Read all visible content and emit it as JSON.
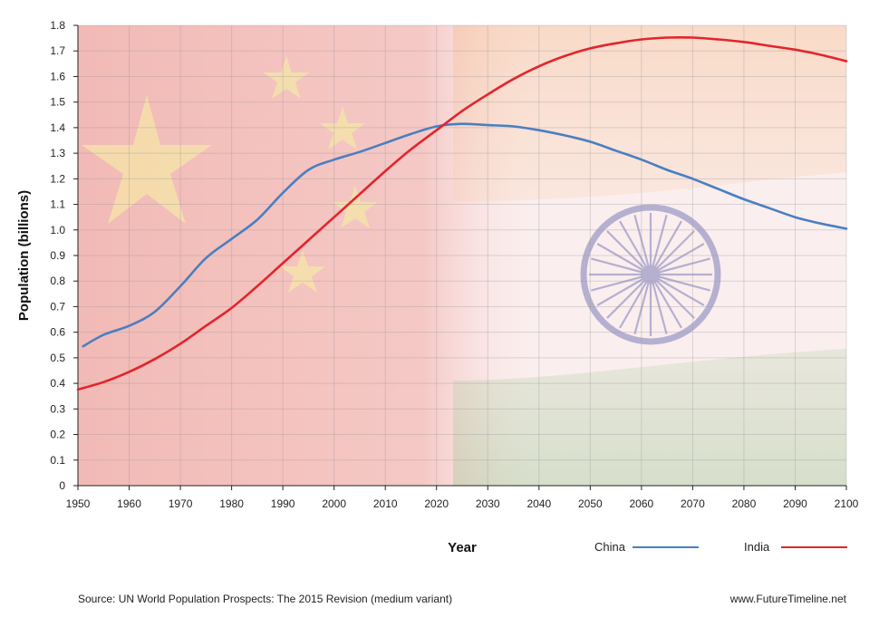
{
  "chart_data": {
    "type": "line",
    "title": "",
    "xlabel": "Year",
    "ylabel": "Population (billions)",
    "xlim": [
      1950,
      2100
    ],
    "ylim": [
      0,
      1.8
    ],
    "x_ticks": [
      1950,
      1960,
      1970,
      1980,
      1990,
      2000,
      2010,
      2020,
      2030,
      2040,
      2050,
      2060,
      2070,
      2080,
      2090,
      2100
    ],
    "y_ticks": [
      "0",
      "0.1",
      "0.2",
      "0.3",
      "0.4",
      "0.5",
      "0.6",
      "0.7",
      "0.8",
      "0.9",
      "1.0",
      "1.1",
      "1.2",
      "1.3",
      "1.4",
      "1.5",
      "1.6",
      "1.7",
      "1.8"
    ],
    "grid": true,
    "legend_position": "bottom-right",
    "series": [
      {
        "name": "China",
        "color": "#4a7fc1",
        "points": [
          [
            1951,
            0.545
          ],
          [
            1955,
            0.59
          ],
          [
            1960,
            0.625
          ],
          [
            1965,
            0.68
          ],
          [
            1970,
            0.78
          ],
          [
            1975,
            0.89
          ],
          [
            1980,
            0.965
          ],
          [
            1985,
            1.04
          ],
          [
            1990,
            1.145
          ],
          [
            1995,
            1.235
          ],
          [
            2000,
            1.275
          ],
          [
            2005,
            1.305
          ],
          [
            2010,
            1.34
          ],
          [
            2015,
            1.375
          ],
          [
            2020,
            1.405
          ],
          [
            2025,
            1.415
          ],
          [
            2030,
            1.41
          ],
          [
            2035,
            1.405
          ],
          [
            2040,
            1.39
          ],
          [
            2045,
            1.37
          ],
          [
            2050,
            1.345
          ],
          [
            2055,
            1.31
          ],
          [
            2060,
            1.275
          ],
          [
            2065,
            1.235
          ],
          [
            2070,
            1.2
          ],
          [
            2075,
            1.16
          ],
          [
            2080,
            1.12
          ],
          [
            2085,
            1.085
          ],
          [
            2090,
            1.05
          ],
          [
            2095,
            1.025
          ],
          [
            2100,
            1.005
          ]
        ]
      },
      {
        "name": "India",
        "color": "#e3242b",
        "points": [
          [
            1950,
            0.376
          ],
          [
            1955,
            0.405
          ],
          [
            1960,
            0.445
          ],
          [
            1965,
            0.495
          ],
          [
            1970,
            0.555
          ],
          [
            1975,
            0.625
          ],
          [
            1980,
            0.695
          ],
          [
            1985,
            0.78
          ],
          [
            1990,
            0.87
          ],
          [
            1995,
            0.96
          ],
          [
            2000,
            1.05
          ],
          [
            2005,
            1.14
          ],
          [
            2010,
            1.23
          ],
          [
            2015,
            1.315
          ],
          [
            2020,
            1.39
          ],
          [
            2025,
            1.465
          ],
          [
            2030,
            1.53
          ],
          [
            2035,
            1.59
          ],
          [
            2040,
            1.64
          ],
          [
            2045,
            1.68
          ],
          [
            2050,
            1.71
          ],
          [
            2055,
            1.73
          ],
          [
            2060,
            1.745
          ],
          [
            2065,
            1.752
          ],
          [
            2070,
            1.752
          ],
          [
            2075,
            1.745
          ],
          [
            2080,
            1.735
          ],
          [
            2085,
            1.72
          ],
          [
            2090,
            1.705
          ],
          [
            2095,
            1.685
          ],
          [
            2100,
            1.66
          ]
        ]
      }
    ]
  },
  "legend": {
    "china_label": "China",
    "india_label": "India"
  },
  "footer": {
    "source": "Source: UN World Population Prospects: The 2015 Revision (medium variant)",
    "website": "www.FutureTimeline.net"
  },
  "background": {
    "description_colors": {
      "china_red": "#de2910",
      "star_yellow": "#ffde00",
      "india_saffron": "#ff9933",
      "india_green": "#138808",
      "chakra_navy": "#000080"
    }
  }
}
